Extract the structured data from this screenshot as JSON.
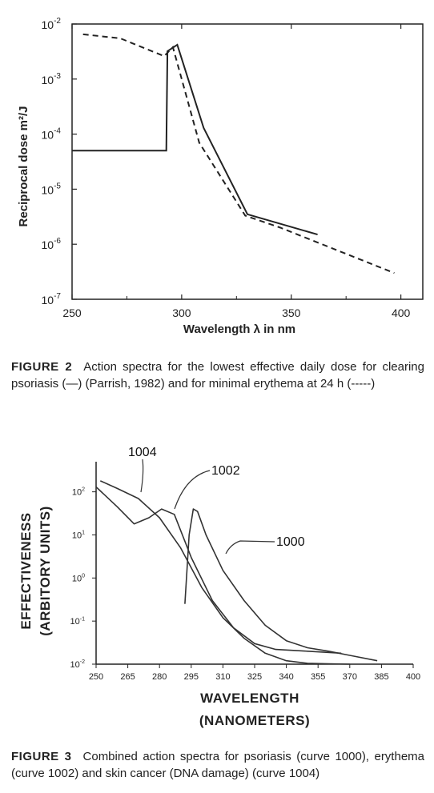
{
  "figure2": {
    "caption_label": "FIGURE 2",
    "caption_text": "Action spectra for the lowest effective daily dose for clearing psoriasis (—) (Parrish, 1982) and for minimal erythema at 24 h (-----)"
  },
  "figure3": {
    "caption_label": "FIGURE 3",
    "caption_text": "Combined action spectra for psoriasis (curve 1000), erythema (curve 1002) and skin cancer (DNA damage) (curve 1004)"
  },
  "chart_data": [
    {
      "type": "line",
      "title": "",
      "xlabel": "Wavelength λ in nm",
      "ylabel": "Reciprocal dose m²/J",
      "x_scale": "linear",
      "y_scale": "log",
      "xlim": [
        250,
        410
      ],
      "ylim": [
        1e-07,
        0.01
      ],
      "x_ticks": [
        250,
        300,
        350,
        400
      ],
      "y_ticks": [
        {
          "value": 1e-07,
          "base": "10",
          "exp": "-7"
        },
        {
          "value": 1e-06,
          "base": "10",
          "exp": "-6"
        },
        {
          "value": 1e-05,
          "base": "10",
          "exp": "-5"
        },
        {
          "value": 0.0001,
          "base": "10",
          "exp": "-4"
        },
        {
          "value": 0.001,
          "base": "10",
          "exp": "-3"
        },
        {
          "value": 0.01,
          "base": "10",
          "exp": "-2"
        }
      ],
      "series": [
        {
          "style": "solid",
          "color": "#222222",
          "x": [
            250,
            293,
            293.5,
            298,
            310,
            330,
            362
          ],
          "y": [
            5e-05,
            5e-05,
            0.0032,
            0.0042,
            0.00013,
            3.5e-06,
            1.5e-06
          ]
        },
        {
          "style": "dashed",
          "color": "#222222",
          "x": [
            255,
            272,
            292,
            296,
            308,
            329,
            345,
            397
          ],
          "y": [
            0.0065,
            0.0055,
            0.0026,
            0.0038,
            7e-05,
            3.3e-06,
            2e-06,
            3e-07
          ]
        }
      ]
    },
    {
      "type": "line",
      "title": "",
      "xlabel": "WAVELENGTH",
      "xlabel2": "(NANOMETERS)",
      "ylabel": "EFFECTIVENESS",
      "ylabel2": "(ARBITORY UNITS)",
      "x_scale": "linear",
      "y_scale": "log",
      "xlim": [
        250,
        400
      ],
      "ylim": [
        0.01,
        500
      ],
      "x_ticks": [
        250,
        265,
        280,
        295,
        310,
        325,
        340,
        355,
        370,
        385,
        400
      ],
      "y_ticks": [
        {
          "value": 0.01,
          "base": "10",
          "exp": "-2"
        },
        {
          "value": 0.1,
          "base": "10",
          "exp": "-1"
        },
        {
          "value": 1,
          "base": "10",
          "exp": "0"
        },
        {
          "value": 10,
          "base": "10",
          "exp": "1"
        },
        {
          "value": 100,
          "base": "10",
          "exp": "2"
        }
      ],
      "annotations": [
        {
          "text": "1004",
          "x": 265,
          "y": 400
        },
        {
          "text": "1002",
          "x": 305,
          "y": 180
        },
        {
          "text": "1000",
          "x": 335,
          "y": 8
        }
      ],
      "series": [
        {
          "name": "1000",
          "color": "#333333",
          "x": [
            292,
            294,
            296,
            298,
            302,
            310,
            320,
            330,
            340,
            350,
            360,
            370,
            383
          ],
          "y": [
            0.25,
            10,
            40,
            35,
            10,
            1.5,
            0.3,
            0.08,
            0.035,
            0.024,
            0.02,
            0.016,
            0.012
          ]
        },
        {
          "name": "1002",
          "color": "#333333",
          "x": [
            250,
            260,
            268,
            275,
            281,
            287,
            295,
            305,
            315,
            325,
            335,
            350,
            366
          ],
          "y": [
            130,
            45,
            18,
            25,
            40,
            30,
            3,
            0.3,
            0.07,
            0.03,
            0.022,
            0.02,
            0.018
          ]
        },
        {
          "name": "1004",
          "color": "#333333",
          "x": [
            252,
            260,
            270,
            280,
            290,
            300,
            310,
            320,
            330,
            340,
            350,
            360,
            370
          ],
          "y": [
            180,
            120,
            70,
            25,
            5,
            0.6,
            0.12,
            0.04,
            0.018,
            0.012,
            0.0105,
            0.0102,
            0.01
          ]
        }
      ]
    }
  ]
}
